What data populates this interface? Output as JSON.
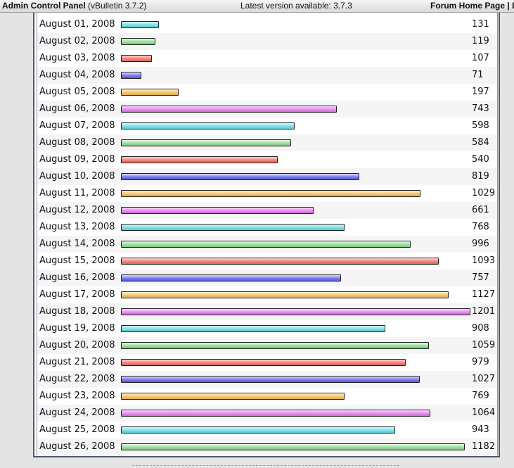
{
  "topbar": {
    "title": "Admin Control Panel",
    "version": "(vBulletin 3.7.2)",
    "latest": "Latest version available: 3.7.3",
    "forum_link": "Forum Home Page",
    "separator": "| L"
  },
  "bar_colors": [
    "#7fe0e6",
    "#9fe09f",
    "#f0857a",
    "#7b7bf0",
    "#f5c870",
    "#e88ef0"
  ],
  "chart_data": {
    "type": "bar",
    "orientation": "horizontal",
    "max_value": 1201,
    "categories": [
      "August 01, 2008",
      "August 02, 2008",
      "August 03, 2008",
      "August 04, 2008",
      "August 05, 2008",
      "August 06, 2008",
      "August 07, 2008",
      "August 08, 2008",
      "August 09, 2008",
      "August 10, 2008",
      "August 11, 2008",
      "August 12, 2008",
      "August 13, 2008",
      "August 14, 2008",
      "August 15, 2008",
      "August 16, 2008",
      "August 17, 2008",
      "August 18, 2008",
      "August 19, 2008",
      "August 20, 2008",
      "August 21, 2008",
      "August 22, 2008",
      "August 23, 2008",
      "August 24, 2008",
      "August 25, 2008",
      "August 26, 2008"
    ],
    "values": [
      131,
      119,
      107,
      71,
      197,
      743,
      598,
      584,
      540,
      819,
      1029,
      661,
      768,
      996,
      1093,
      757,
      1127,
      1201,
      908,
      1059,
      979,
      1027,
      769,
      1064,
      943,
      1182
    ]
  }
}
